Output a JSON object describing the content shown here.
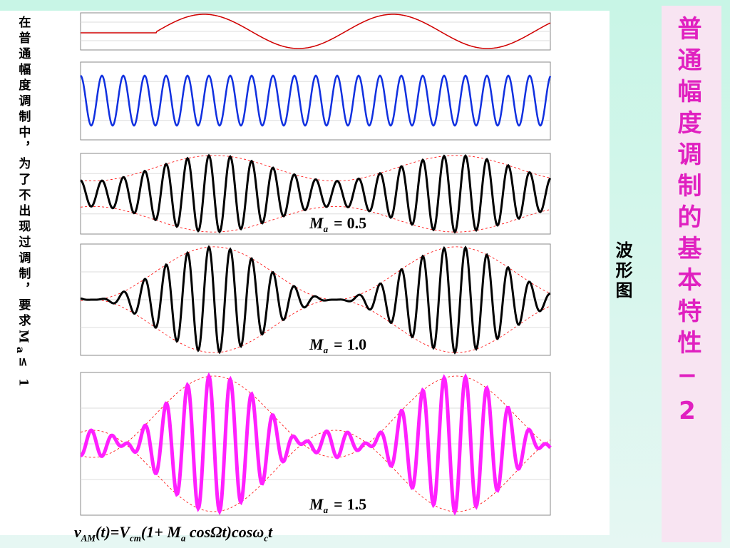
{
  "note": {
    "text": "在普通幅度调制中，为了不出现过调制，要求",
    "symbol": "M",
    "subscript": "a",
    "condition": "≤ 1"
  },
  "title": "普通幅度调制的基本特性−2",
  "side_label": "波形图",
  "panels": [
    {
      "label_symbol": "M",
      "label_subscript": "a",
      "label_value": "0.5"
    },
    {
      "label_symbol": "M",
      "label_subscript": "a",
      "label_value": "1.0"
    },
    {
      "label_symbol": "M",
      "label_subscript": "a",
      "label_value": "1.5"
    }
  ],
  "formula": [
    {
      "text": "v"
    },
    {
      "sub": "AM"
    },
    {
      "text": "(t)=V"
    },
    {
      "sub": "cm"
    },
    {
      "text": "(1+ M"
    },
    {
      "sub": "a"
    },
    {
      "text": " cosΩt)cosω"
    },
    {
      "sub": "c"
    },
    {
      "text": "t"
    }
  ]
}
